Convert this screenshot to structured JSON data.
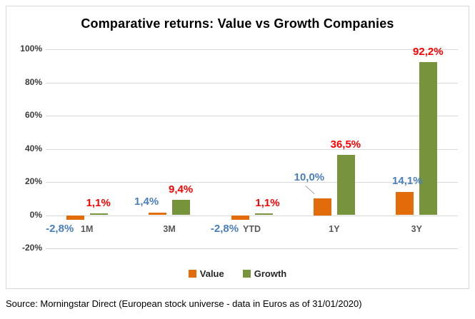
{
  "title": "Comparative returns: Value vs Growth Companies",
  "source_note": "Source: Morningstar Direct (European stock universe - data in Euros as of 31/01/2020)",
  "colors": {
    "value_bar": "#E36C0A",
    "growth_bar": "#77933C",
    "value_label": "#4A7EBB",
    "growth_label": "#FF0000",
    "gridline": "#D9D9D9",
    "axis_text": "#3b3b3b",
    "category_text": "#595959",
    "frame_border": "#D9D9D9",
    "leader_line": "#A6A6A6"
  },
  "legend": [
    {
      "label": "Value",
      "color": "#E36C0A"
    },
    {
      "label": "Growth",
      "color": "#77933C"
    }
  ],
  "chart_data": {
    "type": "bar",
    "title": "Comparative returns: Value vs Growth Companies",
    "categories": [
      "1M",
      "3M",
      "YTD",
      "1Y",
      "3Y"
    ],
    "series": [
      {
        "name": "Value",
        "values": [
          -2.8,
          1.4,
          -2.8,
          10.0,
          14.1
        ],
        "labels": [
          "-2,8%",
          "1,4%",
          "-2,8%",
          "10,0%",
          "14,1%"
        ],
        "label_color": "#4A7EBB",
        "bar_color": "#E36C0A"
      },
      {
        "name": "Growth",
        "values": [
          1.1,
          9.4,
          1.1,
          36.5,
          92.2
        ],
        "labels": [
          "1,1%",
          "9,4%",
          "1,1%",
          "36,5%",
          "92,2%"
        ],
        "label_color": "#FF0000",
        "bar_color": "#77933C"
      }
    ],
    "xlabel": "",
    "ylabel": "",
    "ylim": [
      -20,
      100
    ],
    "ytick_step": 20,
    "ytick_labels": [
      "100%",
      "80%",
      "60%",
      "40%",
      "20%",
      "0%",
      "-20%"
    ],
    "grid": true,
    "legend_position": "bottom",
    "number_format": "comma-decimal",
    "callout_labels": [
      {
        "series": "Value",
        "category": "1Y"
      }
    ]
  }
}
